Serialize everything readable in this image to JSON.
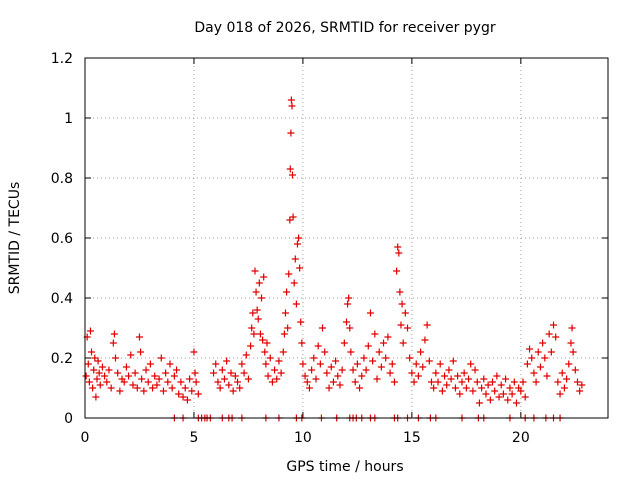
{
  "chart_data": {
    "type": "scatter",
    "title": "Day 018 of 2026, SRMTID for receiver pygr",
    "xlabel": "GPS time / hours",
    "ylabel": "SRMTID / TECUs",
    "xlim": [
      0,
      24
    ],
    "ylim": [
      0,
      1.2
    ],
    "xticks": [
      0,
      5,
      10,
      15,
      20
    ],
    "yticks": [
      0,
      0.2,
      0.4,
      0.6,
      0.8,
      1.0,
      1.2
    ],
    "xtick_labels": [
      "0",
      "5",
      "10",
      "15",
      "20"
    ],
    "ytick_labels": [
      "0",
      "0.2",
      "0.4",
      "0.6",
      "0.8",
      "1",
      "1.2"
    ],
    "grid": true,
    "legend": "none",
    "marker": "plus",
    "series": [
      {
        "name": "SRMTID",
        "color": "#e00000",
        "points": [
          [
            0.05,
            0.14
          ],
          [
            0.1,
            0.27
          ],
          [
            0.15,
            0.18
          ],
          [
            0.2,
            0.12
          ],
          [
            0.25,
            0.29
          ],
          [
            0.3,
            0.22
          ],
          [
            0.35,
            0.1
          ],
          [
            0.4,
            0.16
          ],
          [
            0.45,
            0.2
          ],
          [
            0.5,
            0.07
          ],
          [
            0.55,
            0.13
          ],
          [
            0.6,
            0.19
          ],
          [
            0.65,
            0.15
          ],
          [
            0.7,
            0.11
          ],
          [
            0.8,
            0.17
          ],
          [
            0.9,
            0.14
          ],
          [
            1.0,
            0.12
          ],
          [
            1.1,
            0.16
          ],
          [
            1.2,
            0.1
          ],
          [
            1.3,
            0.25
          ],
          [
            1.35,
            0.28
          ],
          [
            1.4,
            0.2
          ],
          [
            1.5,
            0.15
          ],
          [
            1.6,
            0.09
          ],
          [
            1.7,
            0.13
          ],
          [
            1.8,
            0.12
          ],
          [
            1.9,
            0.17
          ],
          [
            2.0,
            0.14
          ],
          [
            2.1,
            0.21
          ],
          [
            2.2,
            0.11
          ],
          [
            2.3,
            0.15
          ],
          [
            2.4,
            0.1
          ],
          [
            2.5,
            0.27
          ],
          [
            2.55,
            0.22
          ],
          [
            2.6,
            0.13
          ],
          [
            2.7,
            0.09
          ],
          [
            2.8,
            0.16
          ],
          [
            2.9,
            0.12
          ],
          [
            3.0,
            0.18
          ],
          [
            3.1,
            0.1
          ],
          [
            3.2,
            0.14
          ],
          [
            3.3,
            0.11
          ],
          [
            3.4,
            0.13
          ],
          [
            3.5,
            0.2
          ],
          [
            3.6,
            0.09
          ],
          [
            3.7,
            0.15
          ],
          [
            3.8,
            0.12
          ],
          [
            3.9,
            0.18
          ],
          [
            4.0,
            0.1
          ],
          [
            4.1,
            0.14
          ],
          [
            4.2,
            0.16
          ],
          [
            4.3,
            0.08
          ],
          [
            4.4,
            0.12
          ],
          [
            4.5,
            0.07
          ],
          [
            4.6,
            0.1
          ],
          [
            4.7,
            0.06
          ],
          [
            4.8,
            0.13
          ],
          [
            4.9,
            0.09
          ],
          [
            5.0,
            0.22
          ],
          [
            5.05,
            0.15
          ],
          [
            5.1,
            0.12
          ],
          [
            5.2,
            0.08
          ],
          [
            5.9,
            0.15
          ],
          [
            6.0,
            0.18
          ],
          [
            6.1,
            0.12
          ],
          [
            6.2,
            0.1
          ],
          [
            6.3,
            0.16
          ],
          [
            6.4,
            0.13
          ],
          [
            6.5,
            0.19
          ],
          [
            6.6,
            0.11
          ],
          [
            6.7,
            0.15
          ],
          [
            6.8,
            0.09
          ],
          [
            6.9,
            0.14
          ],
          [
            7.0,
            0.12
          ],
          [
            7.1,
            0.1
          ],
          [
            7.2,
            0.18
          ],
          [
            7.3,
            0.15
          ],
          [
            7.4,
            0.21
          ],
          [
            7.5,
            0.13
          ],
          [
            7.6,
            0.24
          ],
          [
            7.65,
            0.3
          ],
          [
            7.7,
            0.35
          ],
          [
            7.75,
            0.28
          ],
          [
            7.8,
            0.49
          ],
          [
            7.85,
            0.42
          ],
          [
            7.9,
            0.36
          ],
          [
            7.95,
            0.33
          ],
          [
            8.0,
            0.45
          ],
          [
            8.05,
            0.28
          ],
          [
            8.1,
            0.4
          ],
          [
            8.15,
            0.26
          ],
          [
            8.2,
            0.47
          ],
          [
            8.25,
            0.22
          ],
          [
            8.3,
            0.18
          ],
          [
            8.35,
            0.25
          ],
          [
            8.4,
            0.14
          ],
          [
            8.5,
            0.2
          ],
          [
            8.6,
            0.12
          ],
          [
            8.7,
            0.16
          ],
          [
            8.8,
            0.13
          ],
          [
            8.9,
            0.19
          ],
          [
            9.0,
            0.15
          ],
          [
            9.1,
            0.22
          ],
          [
            9.15,
            0.28
          ],
          [
            9.2,
            0.35
          ],
          [
            9.25,
            0.42
          ],
          [
            9.3,
            0.3
          ],
          [
            9.35,
            0.48
          ],
          [
            9.4,
            0.66
          ],
          [
            9.42,
            0.83
          ],
          [
            9.45,
            0.95
          ],
          [
            9.47,
            1.06
          ],
          [
            9.5,
            1.04
          ],
          [
            9.52,
            0.81
          ],
          [
            9.55,
            0.67
          ],
          [
            9.6,
            0.45
          ],
          [
            9.65,
            0.53
          ],
          [
            9.7,
            0.38
          ],
          [
            9.75,
            0.58
          ],
          [
            9.8,
            0.6
          ],
          [
            9.85,
            0.5
          ],
          [
            9.9,
            0.32
          ],
          [
            9.95,
            0.25
          ],
          [
            10.0,
            0.18
          ],
          [
            10.1,
            0.14
          ],
          [
            10.2,
            0.12
          ],
          [
            10.3,
            0.1
          ],
          [
            10.4,
            0.16
          ],
          [
            10.5,
            0.2
          ],
          [
            10.6,
            0.13
          ],
          [
            10.7,
            0.24
          ],
          [
            10.8,
            0.18
          ],
          [
            10.9,
            0.3
          ],
          [
            11.0,
            0.22
          ],
          [
            11.1,
            0.15
          ],
          [
            11.2,
            0.1
          ],
          [
            11.3,
            0.17
          ],
          [
            11.4,
            0.12
          ],
          [
            11.5,
            0.19
          ],
          [
            11.6,
            0.14
          ],
          [
            11.7,
            0.11
          ],
          [
            11.8,
            0.16
          ],
          [
            11.9,
            0.25
          ],
          [
            12.0,
            0.32
          ],
          [
            12.05,
            0.38
          ],
          [
            12.1,
            0.4
          ],
          [
            12.15,
            0.3
          ],
          [
            12.2,
            0.22
          ],
          [
            12.3,
            0.16
          ],
          [
            12.4,
            0.12
          ],
          [
            12.5,
            0.18
          ],
          [
            12.6,
            0.1
          ],
          [
            12.7,
            0.14
          ],
          [
            12.8,
            0.2
          ],
          [
            12.9,
            0.16
          ],
          [
            13.0,
            0.24
          ],
          [
            13.1,
            0.35
          ],
          [
            13.2,
            0.19
          ],
          [
            13.3,
            0.28
          ],
          [
            13.4,
            0.13
          ],
          [
            13.5,
            0.22
          ],
          [
            13.6,
            0.17
          ],
          [
            13.7,
            0.25
          ],
          [
            13.8,
            0.2
          ],
          [
            13.9,
            0.27
          ],
          [
            14.0,
            0.15
          ],
          [
            14.1,
            0.18
          ],
          [
            14.2,
            0.12
          ],
          [
            14.3,
            0.49
          ],
          [
            14.35,
            0.57
          ],
          [
            14.4,
            0.55
          ],
          [
            14.45,
            0.42
          ],
          [
            14.5,
            0.31
          ],
          [
            14.55,
            0.38
          ],
          [
            14.6,
            0.25
          ],
          [
            14.7,
            0.35
          ],
          [
            14.8,
            0.3
          ],
          [
            14.9,
            0.2
          ],
          [
            15.0,
            0.15
          ],
          [
            15.1,
            0.12
          ],
          [
            15.2,
            0.18
          ],
          [
            15.3,
            0.14
          ],
          [
            15.4,
            0.22
          ],
          [
            15.5,
            0.17
          ],
          [
            15.6,
            0.26
          ],
          [
            15.7,
            0.31
          ],
          [
            15.8,
            0.19
          ],
          [
            15.9,
            0.12
          ],
          [
            16.0,
            0.1
          ],
          [
            16.1,
            0.15
          ],
          [
            16.2,
            0.12
          ],
          [
            16.3,
            0.18
          ],
          [
            16.4,
            0.09
          ],
          [
            16.5,
            0.14
          ],
          [
            16.6,
            0.11
          ],
          [
            16.7,
            0.16
          ],
          [
            16.8,
            0.13
          ],
          [
            16.9,
            0.19
          ],
          [
            17.0,
            0.1
          ],
          [
            17.1,
            0.14
          ],
          [
            17.2,
            0.08
          ],
          [
            17.3,
            0.12
          ],
          [
            17.4,
            0.15
          ],
          [
            17.5,
            0.1
          ],
          [
            17.6,
            0.13
          ],
          [
            17.7,
            0.18
          ],
          [
            17.8,
            0.09
          ],
          [
            17.9,
            0.16
          ],
          [
            18.0,
            0.12
          ],
          [
            18.1,
            0.05
          ],
          [
            18.2,
            0.1
          ],
          [
            18.3,
            0.13
          ],
          [
            18.4,
            0.08
          ],
          [
            18.5,
            0.11
          ],
          [
            18.6,
            0.06
          ],
          [
            18.7,
            0.12
          ],
          [
            18.8,
            0.09
          ],
          [
            18.9,
            0.14
          ],
          [
            19.0,
            0.07
          ],
          [
            19.1,
            0.11
          ],
          [
            19.2,
            0.08
          ],
          [
            19.3,
            0.13
          ],
          [
            19.4,
            0.06
          ],
          [
            19.5,
            0.1
          ],
          [
            19.6,
            0.08
          ],
          [
            19.7,
            0.12
          ],
          [
            19.8,
            0.05
          ],
          [
            19.9,
            0.1
          ],
          [
            20.0,
            0.09
          ],
          [
            20.1,
            0.12
          ],
          [
            20.2,
            0.07
          ],
          [
            20.3,
            0.18
          ],
          [
            20.4,
            0.23
          ],
          [
            20.5,
            0.2
          ],
          [
            20.6,
            0.15
          ],
          [
            20.7,
            0.12
          ],
          [
            20.8,
            0.22
          ],
          [
            20.9,
            0.17
          ],
          [
            21.0,
            0.25
          ],
          [
            21.1,
            0.2
          ],
          [
            21.2,
            0.14
          ],
          [
            21.3,
            0.28
          ],
          [
            21.4,
            0.22
          ],
          [
            21.5,
            0.31
          ],
          [
            21.6,
            0.27
          ],
          [
            21.7,
            0.12
          ],
          [
            21.8,
            0.08
          ],
          [
            21.9,
            0.15
          ],
          [
            22.0,
            0.1
          ],
          [
            22.1,
            0.13
          ],
          [
            22.2,
            0.18
          ],
          [
            22.3,
            0.25
          ],
          [
            22.35,
            0.3
          ],
          [
            22.4,
            0.22
          ],
          [
            22.5,
            0.16
          ],
          [
            22.6,
            0.12
          ],
          [
            22.7,
            0.09
          ],
          [
            22.8,
            0.11
          ]
        ]
      },
      {
        "name": "gap markers",
        "color": "#e00000",
        "points": [
          [
            4.1,
            0
          ],
          [
            4.5,
            0
          ],
          [
            5.2,
            0
          ],
          [
            5.35,
            0
          ],
          [
            5.5,
            0
          ],
          [
            5.6,
            0
          ],
          [
            5.75,
            0
          ],
          [
            6.3,
            0
          ],
          [
            6.6,
            0
          ],
          [
            6.75,
            0
          ],
          [
            7.2,
            0
          ],
          [
            8.3,
            0
          ],
          [
            8.9,
            0
          ],
          [
            9.7,
            0
          ],
          [
            9.95,
            0
          ],
          [
            10.85,
            0
          ],
          [
            11.55,
            0
          ],
          [
            12.15,
            0
          ],
          [
            12.3,
            0
          ],
          [
            12.45,
            0
          ],
          [
            12.7,
            0
          ],
          [
            13.1,
            0
          ],
          [
            13.3,
            0
          ],
          [
            14.2,
            0
          ],
          [
            14.35,
            0
          ],
          [
            14.8,
            0
          ],
          [
            15.3,
            0
          ],
          [
            15.85,
            0
          ],
          [
            16.1,
            0
          ],
          [
            17.3,
            0
          ],
          [
            18.05,
            0
          ],
          [
            18.3,
            0
          ],
          [
            19.5,
            0
          ],
          [
            20.2,
            0
          ],
          [
            20.6,
            0
          ],
          [
            21.15,
            0
          ],
          [
            21.5,
            0
          ],
          [
            21.8,
            0
          ]
        ]
      }
    ]
  }
}
